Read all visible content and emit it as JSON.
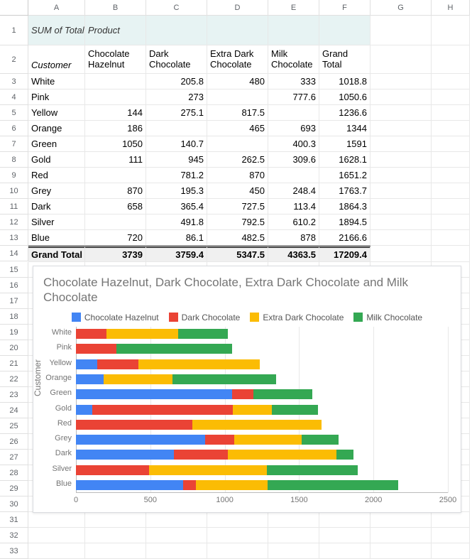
{
  "grid": {
    "columns": [
      "A",
      "B",
      "C",
      "D",
      "E",
      "F",
      "G",
      "H"
    ],
    "row_count": 33
  },
  "pivot": {
    "corner_label": "SUM of Total Sales",
    "col_dim_label": "Product",
    "row_dim_label": "Customer",
    "col_headers": [
      "Chocolate Hazelnut",
      "Dark Chocolate",
      "Extra Dark Chocolate",
      "Milk Chocolate",
      "Grand Total"
    ],
    "rows": [
      {
        "label": "White",
        "v": [
          "",
          "205.8",
          "480",
          "333",
          "1018.8"
        ]
      },
      {
        "label": "Pink",
        "v": [
          "",
          "273",
          "",
          "777.6",
          "1050.6"
        ]
      },
      {
        "label": "Yellow",
        "v": [
          "144",
          "275.1",
          "817.5",
          "",
          "1236.6"
        ]
      },
      {
        "label": "Orange",
        "v": [
          "186",
          "",
          "465",
          "693",
          "1344"
        ]
      },
      {
        "label": "Green",
        "v": [
          "1050",
          "140.7",
          "",
          "400.3",
          "1591"
        ]
      },
      {
        "label": "Gold",
        "v": [
          "111",
          "945",
          "262.5",
          "309.6",
          "1628.1"
        ]
      },
      {
        "label": "Red",
        "v": [
          "",
          "781.2",
          "870",
          "",
          "1651.2"
        ]
      },
      {
        "label": "Grey",
        "v": [
          "870",
          "195.3",
          "450",
          "248.4",
          "1763.7"
        ]
      },
      {
        "label": "Dark",
        "v": [
          "658",
          "365.4",
          "727.5",
          "113.4",
          "1864.3"
        ]
      },
      {
        "label": "Silver",
        "v": [
          "",
          "491.8",
          "792.5",
          "610.2",
          "1894.5"
        ]
      },
      {
        "label": "Blue",
        "v": [
          "720",
          "86.1",
          "482.5",
          "878",
          "2166.6"
        ]
      }
    ],
    "grand_total": {
      "label": "Grand Total",
      "v": [
        "3739",
        "3759.4",
        "5347.5",
        "4363.5",
        "17209.4"
      ]
    }
  },
  "chart": {
    "title": "Chocolate Hazelnut, Dark Chocolate, Extra Dark Chocolate and Milk Chocolate",
    "type": "stacked-horizontal-bar",
    "series": [
      {
        "name": "Chocolate Hazelnut",
        "color": "#4285f4"
      },
      {
        "name": "Dark Chocolate",
        "color": "#ea4335"
      },
      {
        "name": "Extra Dark Chocolate",
        "color": "#fbbc04"
      },
      {
        "name": "Milk Chocolate",
        "color": "#34a853"
      }
    ],
    "ylabel": "Customer",
    "categories": [
      "White",
      "Pink",
      "Yellow",
      "Orange",
      "Green",
      "Gold",
      "Red",
      "Grey",
      "Dark",
      "Silver",
      "Blue"
    ],
    "data": [
      [
        0,
        205.8,
        480,
        333
      ],
      [
        0,
        273,
        0,
        777.6
      ],
      [
        144,
        275.1,
        817.5,
        0
      ],
      [
        186,
        0,
        465,
        693
      ],
      [
        1050,
        140.7,
        0,
        400.3
      ],
      [
        111,
        945,
        262.5,
        309.6
      ],
      [
        0,
        781.2,
        870,
        0
      ],
      [
        870,
        195.3,
        450,
        248.4
      ],
      [
        658,
        365.4,
        727.5,
        113.4
      ],
      [
        0,
        491.8,
        792.5,
        610.2
      ],
      [
        720,
        86.1,
        482.5,
        878
      ]
    ],
    "xmax": 2500,
    "xticks": [
      0,
      500,
      1000,
      1500,
      2000,
      2500
    ],
    "grid_color": "#e8e8e8",
    "axis_fontsize": 11,
    "title_color": "#757575",
    "title_fontsize": 17
  }
}
